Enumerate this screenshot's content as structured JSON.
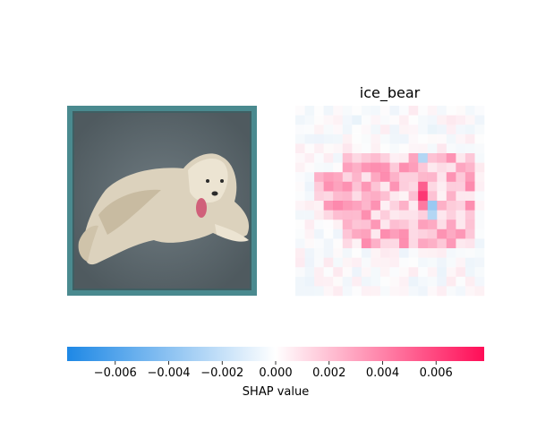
{
  "chart_data": {
    "type": "heatmap",
    "panels": [
      {
        "name": "input-image",
        "title": "",
        "subject": "white dog lying on grey floor"
      },
      {
        "name": "shap-overlay",
        "title": "ice_bear"
      }
    ],
    "colorbar": {
      "label": "SHAP value",
      "range": [
        -0.0078,
        0.0078
      ],
      "ticks": [
        -0.006,
        -0.004,
        -0.002,
        0.0,
        0.002,
        0.004,
        0.006
      ],
      "tick_labels": [
        "−0.006",
        "−0.004",
        "−0.002",
        "0.000",
        "0.002",
        "0.004",
        "0.006"
      ],
      "colors": {
        "negative": "#1e88e5",
        "zero": "#ffffff",
        "positive": "#ff0d57"
      }
    },
    "shap_grid": {
      "rows": 20,
      "cols": 20,
      "description": "positive (pink/red) values concentrated over the dog's body, strongest near head/chest; sparse negative (blue) cells near head and right side",
      "hotspots": [
        {
          "row": 9,
          "col": 13,
          "value": 0.0075
        },
        {
          "row": 8,
          "col": 13,
          "value": 0.006
        },
        {
          "row": 10,
          "col": 13,
          "value": 0.005
        },
        {
          "row": 6,
          "col": 9,
          "value": 0.004
        },
        {
          "row": 7,
          "col": 16,
          "value": 0.004
        },
        {
          "row": 6,
          "col": 5,
          "value": 0.0035
        },
        {
          "row": 5,
          "col": 13,
          "value": -0.003
        },
        {
          "row": 10,
          "col": 14,
          "value": -0.004
        },
        {
          "row": 11,
          "col": 14,
          "value": -0.003
        }
      ]
    }
  }
}
